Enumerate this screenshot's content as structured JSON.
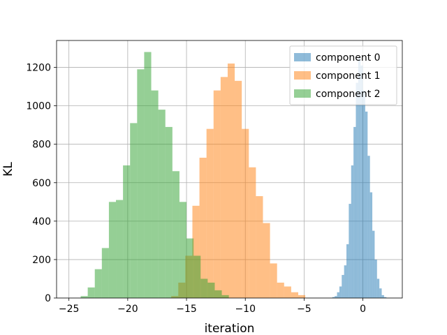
{
  "chart_data": {
    "type": "bar",
    "title": "",
    "xlabel": "iteration",
    "ylabel": "KL",
    "xlim": [
      -26.05,
      3.35
    ],
    "ylim": [
      0,
      1340
    ],
    "xticks": [
      -25,
      -20,
      -15,
      -10,
      -5,
      0
    ],
    "xtick_labels": [
      "−25",
      "−20",
      "−15",
      "−10",
      "−5",
      "0"
    ],
    "yticks": [
      0,
      200,
      400,
      600,
      800,
      1000,
      1200
    ],
    "ytick_labels": [
      "0",
      "200",
      "400",
      "600",
      "800",
      "1000",
      "1200"
    ],
    "grid": true,
    "legend_position": "top-right",
    "series": [
      {
        "name": "component 0",
        "color": "#1f77b4",
        "bin_edges": [
          -2.6,
          -2.4,
          -2.2,
          -2.0,
          -1.8,
          -1.6,
          -1.4,
          -1.2,
          -1.0,
          -0.8,
          -0.6,
          -0.4,
          -0.2,
          0.0,
          0.2,
          0.4,
          0.6,
          0.8,
          1.0,
          1.2,
          1.4,
          1.6,
          1.8,
          2.0
        ],
        "counts": [
          5,
          10,
          30,
          60,
          120,
          170,
          280,
          490,
          690,
          890,
          1120,
          1250,
          1210,
          1080,
          970,
          740,
          550,
          350,
          200,
          100,
          50,
          15,
          5
        ]
      },
      {
        "name": "component 1",
        "color": "#ff7f0e",
        "bin_edges": [
          -16.3,
          -15.7,
          -15.1,
          -14.5,
          -13.9,
          -13.3,
          -12.7,
          -12.1,
          -11.5,
          -10.9,
          -10.3,
          -9.7,
          -9.1,
          -8.5,
          -7.9,
          -7.3,
          -6.7,
          -6.1,
          -5.5,
          -4.9
        ],
        "counts": [
          10,
          80,
          220,
          480,
          730,
          880,
          1080,
          1150,
          1220,
          1130,
          880,
          680,
          530,
          390,
          180,
          80,
          60,
          30,
          15
        ]
      },
      {
        "name": "component 2",
        "color": "#2ca02c",
        "bin_edges": [
          -24.0,
          -23.4,
          -22.8,
          -22.2,
          -21.6,
          -21.0,
          -20.4,
          -19.8,
          -19.2,
          -18.6,
          -18.0,
          -17.4,
          -16.8,
          -16.2,
          -15.6,
          -15.0,
          -14.4,
          -13.8,
          -13.2,
          -12.6,
          -12.0,
          -11.4
        ],
        "counts": [
          10,
          55,
          150,
          260,
          500,
          510,
          690,
          910,
          1190,
          1280,
          1080,
          980,
          890,
          660,
          500,
          310,
          220,
          100,
          80,
          40,
          15
        ]
      }
    ]
  }
}
